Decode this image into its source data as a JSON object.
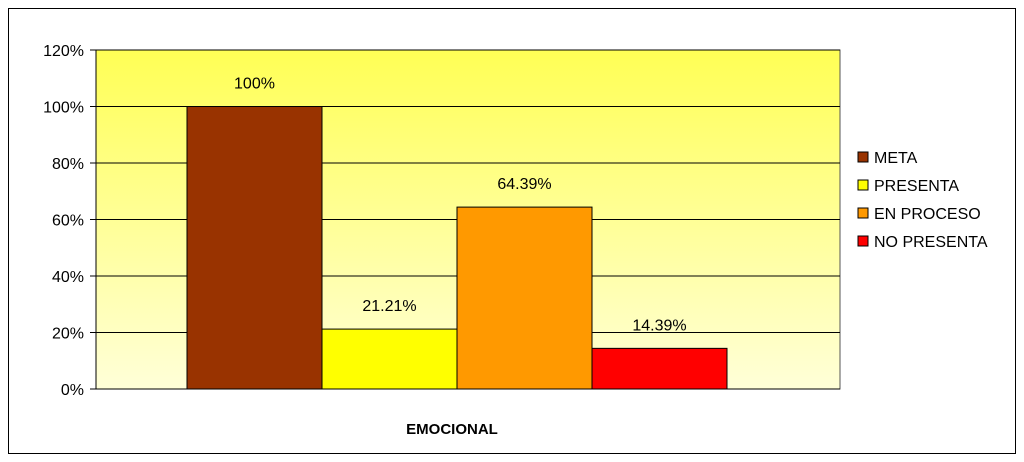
{
  "chart_data": {
    "type": "bar",
    "categories": [
      "EMOCIONAL"
    ],
    "series": [
      {
        "name": "META",
        "values": [
          100
        ],
        "color": "#993300",
        "label": "100%"
      },
      {
        "name": "PRESENTA",
        "values": [
          21.21
        ],
        "color": "#FFFF00",
        "label": "21.21%"
      },
      {
        "name": "EN PROCESO",
        "values": [
          64.39
        ],
        "color": "#FF9900",
        "label": "64.39%"
      },
      {
        "name": "NO PRESENTA",
        "values": [
          14.39
        ],
        "color": "#FF0000",
        "label": "14.39%"
      }
    ],
    "ylim": [
      0,
      120
    ],
    "yticks": [
      "0%",
      "20%",
      "40%",
      "60%",
      "80%",
      "100%",
      "120%"
    ],
    "grid": true,
    "legend": "right",
    "plot_background": "light yellow gradient",
    "colors": {
      "grid": "#000000",
      "plot_top": "#FFFF66",
      "plot_bottom": "#FFFFCC"
    }
  }
}
